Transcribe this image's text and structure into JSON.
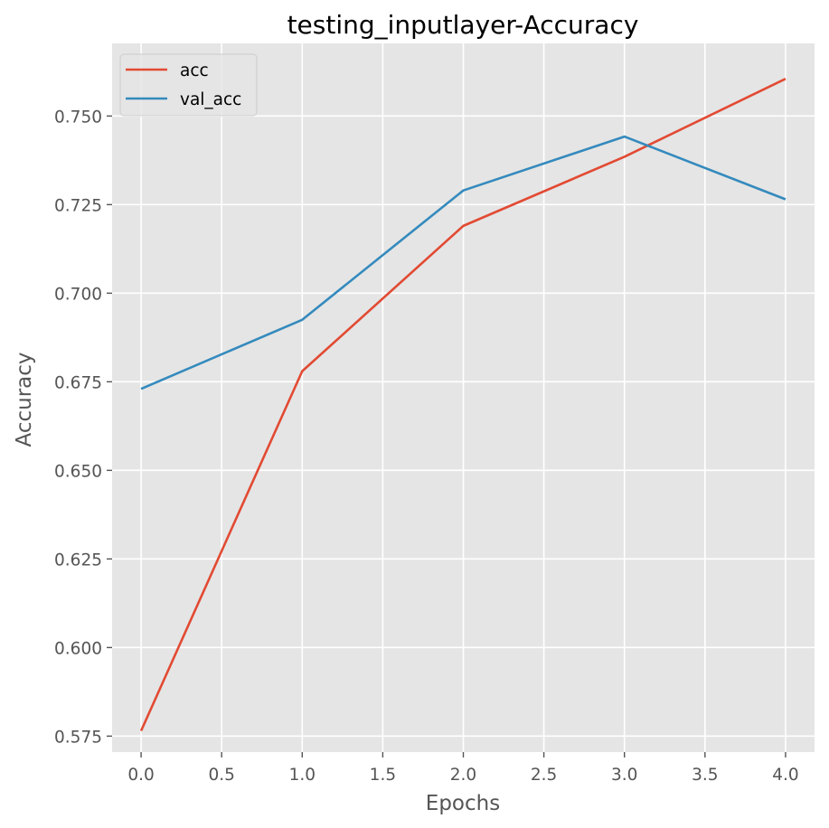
{
  "chart_data": {
    "type": "line",
    "title": "testing_inputlayer-Accuracy",
    "xlabel": "Epochs",
    "ylabel": "Accuracy",
    "x": [
      0,
      1,
      2,
      3,
      4
    ],
    "xlim": [
      -0.18,
      4.18
    ],
    "ylim": [
      0.5705,
      0.7705
    ],
    "xticks": [
      0.0,
      0.5,
      1.0,
      1.5,
      2.0,
      2.5,
      3.0,
      3.5,
      4.0
    ],
    "xtick_labels": [
      "0.0",
      "0.5",
      "1.0",
      "1.5",
      "2.0",
      "2.5",
      "3.0",
      "3.5",
      "4.0"
    ],
    "yticks": [
      0.575,
      0.6,
      0.625,
      0.65,
      0.675,
      0.7,
      0.725,
      0.75
    ],
    "ytick_labels": [
      "0.575",
      "0.600",
      "0.625",
      "0.650",
      "0.675",
      "0.700",
      "0.725",
      "0.750"
    ],
    "grid": true,
    "legend_position": "top-left",
    "background_color": "#E5E5E5",
    "grid_color": "#FFFFFF",
    "series": [
      {
        "name": "acc",
        "color": "#E24A33",
        "values": [
          0.5765,
          0.678,
          0.719,
          0.7385,
          0.7605
        ]
      },
      {
        "name": "val_acc",
        "color": "#348ABD",
        "values": [
          0.673,
          0.6925,
          0.729,
          0.7442,
          0.7265
        ]
      }
    ]
  }
}
